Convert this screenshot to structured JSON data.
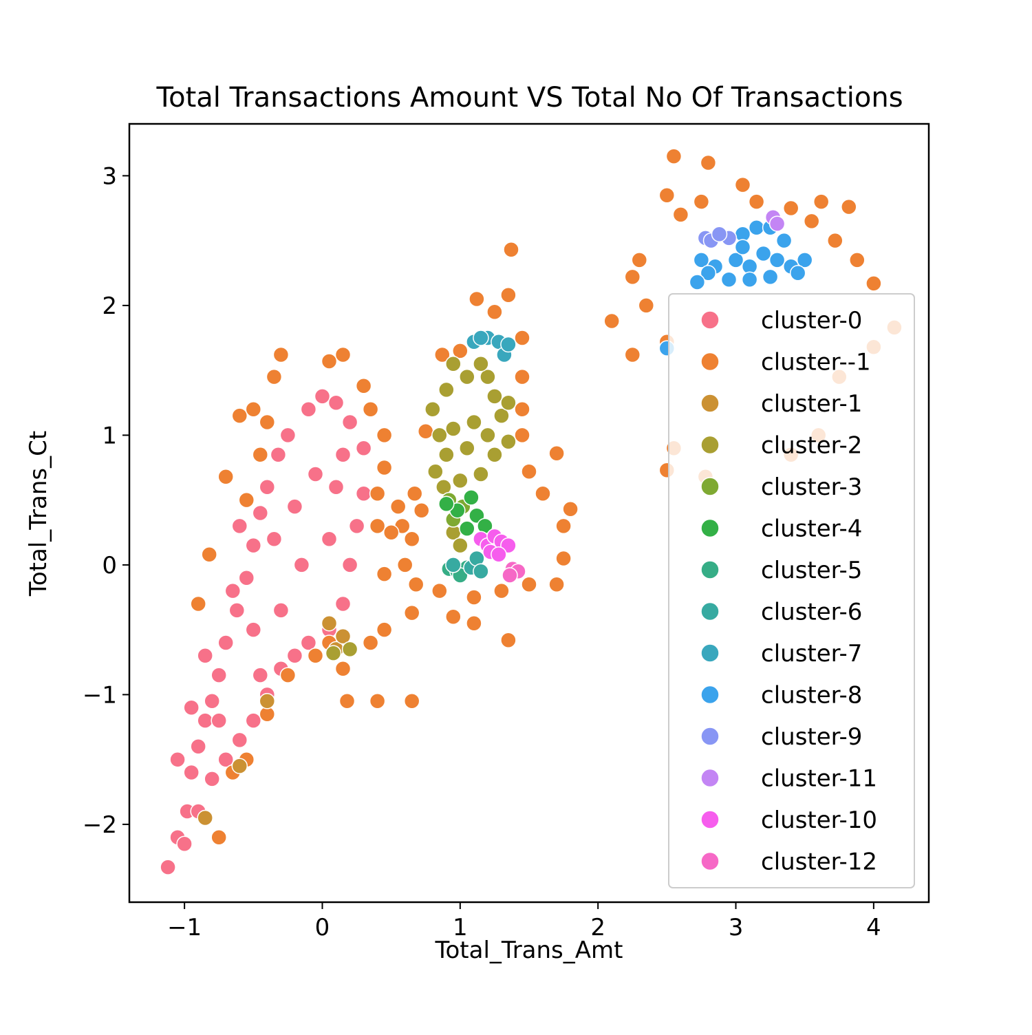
{
  "chart_data": {
    "type": "scatter",
    "title": "Total Transactions Amount VS Total No Of Transactions",
    "xlabel": "Total_Trans_Amt",
    "ylabel": "Total_Trans_Ct",
    "xlim": [
      -1.4,
      4.4
    ],
    "ylim": [
      -2.6,
      3.4
    ],
    "xticks": [
      -1,
      0,
      1,
      2,
      3,
      4
    ],
    "yticks": [
      -2,
      -1,
      0,
      1,
      2,
      3
    ],
    "xtick_labels": [
      "−1",
      "0",
      "1",
      "2",
      "3",
      "4"
    ],
    "ytick_labels": [
      "−2",
      "−1",
      "0",
      "1",
      "2",
      "3"
    ],
    "grid": false,
    "legend_position": "right",
    "marker_edge_color": "#ffffff",
    "series": [
      {
        "name": "cluster-0",
        "color": "#f77189",
        "points": [
          [
            -1.12,
            -2.33
          ],
          [
            -1.05,
            -2.1
          ],
          [
            -0.98,
            -1.9
          ],
          [
            -0.95,
            -1.6
          ],
          [
            -0.9,
            -1.4
          ],
          [
            -0.85,
            -1.2
          ],
          [
            -0.8,
            -1.05
          ],
          [
            -0.75,
            -0.85
          ],
          [
            -0.7,
            -0.6
          ],
          [
            -0.62,
            -0.35
          ],
          [
            -0.55,
            -0.1
          ],
          [
            -0.5,
            0.15
          ],
          [
            -0.45,
            0.4
          ],
          [
            -0.4,
            0.6
          ],
          [
            -0.32,
            0.85
          ],
          [
            -0.25,
            1.0
          ],
          [
            -0.1,
            1.2
          ],
          [
            0.0,
            1.3
          ],
          [
            0.1,
            1.25
          ],
          [
            0.2,
            1.1
          ],
          [
            0.3,
            0.9
          ],
          [
            0.3,
            0.55
          ],
          [
            0.25,
            0.3
          ],
          [
            0.2,
            0.0
          ],
          [
            0.15,
            -0.3
          ],
          [
            0.05,
            -0.5
          ],
          [
            -0.1,
            -0.6
          ],
          [
            -0.2,
            -0.7
          ],
          [
            -0.3,
            -0.8
          ],
          [
            -0.4,
            -1.0
          ],
          [
            -0.5,
            -1.2
          ],
          [
            -0.6,
            -1.35
          ],
          [
            -0.7,
            -1.5
          ],
          [
            -0.8,
            -1.65
          ],
          [
            -0.9,
            -1.9
          ],
          [
            -1.0,
            -2.15
          ],
          [
            -0.85,
            -0.7
          ],
          [
            -0.65,
            -0.2
          ],
          [
            -0.5,
            -0.5
          ],
          [
            -0.35,
            0.2
          ],
          [
            -0.2,
            0.45
          ],
          [
            -0.05,
            0.7
          ],
          [
            0.1,
            0.6
          ],
          [
            -0.15,
            0.0
          ],
          [
            -0.3,
            -0.35
          ],
          [
            0.05,
            0.2
          ],
          [
            0.15,
            0.85
          ],
          [
            -0.6,
            0.3
          ],
          [
            -0.45,
            -0.85
          ],
          [
            -0.75,
            -1.2
          ],
          [
            -0.95,
            -1.1
          ],
          [
            -1.05,
            -1.5
          ]
        ]
      },
      {
        "name": "cluster--1",
        "color": "#ee8132",
        "points": [
          [
            2.55,
            3.15
          ],
          [
            2.8,
            3.1
          ],
          [
            3.05,
            2.93
          ],
          [
            2.5,
            2.85
          ],
          [
            2.75,
            2.8
          ],
          [
            3.15,
            2.8
          ],
          [
            3.4,
            2.75
          ],
          [
            3.62,
            2.8
          ],
          [
            3.82,
            2.76
          ],
          [
            2.6,
            2.7
          ],
          [
            3.55,
            2.65
          ],
          [
            2.3,
            2.35
          ],
          [
            3.72,
            2.5
          ],
          [
            3.88,
            2.35
          ],
          [
            2.25,
            2.22
          ],
          [
            4.0,
            2.17
          ],
          [
            2.35,
            2.0
          ],
          [
            2.1,
            1.88
          ],
          [
            4.15,
            1.83
          ],
          [
            2.5,
            1.72
          ],
          [
            4.0,
            1.68
          ],
          [
            2.25,
            1.62
          ],
          [
            3.75,
            1.45
          ],
          [
            2.55,
            0.9
          ],
          [
            2.5,
            0.73
          ],
          [
            2.78,
            0.68
          ],
          [
            3.6,
            1.0
          ],
          [
            3.4,
            0.85
          ],
          [
            1.37,
            2.43
          ],
          [
            1.35,
            2.08
          ],
          [
            1.12,
            2.05
          ],
          [
            1.25,
            1.95
          ],
          [
            1.45,
            1.75
          ],
          [
            1.0,
            1.65
          ],
          [
            0.87,
            1.62
          ],
          [
            1.45,
            1.45
          ],
          [
            1.45,
            1.2
          ],
          [
            1.45,
            1.0
          ],
          [
            1.7,
            0.86
          ],
          [
            1.8,
            0.43
          ],
          [
            1.5,
            0.72
          ],
          [
            1.6,
            0.55
          ],
          [
            1.75,
            0.3
          ],
          [
            1.75,
            0.05
          ],
          [
            1.7,
            -0.15
          ],
          [
            1.5,
            -0.15
          ],
          [
            1.3,
            -0.2
          ],
          [
            1.1,
            -0.25
          ],
          [
            0.95,
            -0.4
          ],
          [
            1.1,
            -0.45
          ],
          [
            1.35,
            -0.58
          ],
          [
            0.85,
            -0.2
          ],
          [
            0.68,
            -0.15
          ],
          [
            0.6,
            0.0
          ],
          [
            0.65,
            0.2
          ],
          [
            0.55,
            0.45
          ],
          [
            0.67,
            0.55
          ],
          [
            0.72,
            0.42
          ],
          [
            0.58,
            0.3
          ],
          [
            0.5,
            0.25
          ],
          [
            0.4,
            0.55
          ],
          [
            0.75,
            1.03
          ],
          [
            0.45,
            -0.07
          ],
          [
            0.45,
            -0.5
          ],
          [
            0.35,
            -0.6
          ],
          [
            0.65,
            -0.37
          ],
          [
            0.4,
            -1.05
          ],
          [
            0.65,
            -1.05
          ],
          [
            0.18,
            -1.05
          ],
          [
            0.15,
            -0.8
          ],
          [
            0.05,
            -0.6
          ],
          [
            -0.05,
            -0.7
          ],
          [
            -0.25,
            -0.85
          ],
          [
            -0.4,
            -1.15
          ],
          [
            -0.55,
            -1.5
          ],
          [
            -0.65,
            -1.6
          ],
          [
            -0.75,
            -2.1
          ],
          [
            -0.85,
            -1.95
          ],
          [
            -0.9,
            -0.3
          ],
          [
            -0.82,
            0.08
          ],
          [
            -0.7,
            0.68
          ],
          [
            -0.6,
            1.15
          ],
          [
            -0.5,
            1.2
          ],
          [
            -0.35,
            1.45
          ],
          [
            -0.3,
            1.62
          ],
          [
            0.05,
            1.57
          ],
          [
            0.15,
            1.62
          ],
          [
            0.3,
            1.38
          ],
          [
            0.35,
            1.2
          ],
          [
            0.45,
            1.0
          ],
          [
            0.45,
            0.75
          ],
          [
            0.4,
            0.3
          ],
          [
            -0.4,
            1.1
          ],
          [
            -0.55,
            0.5
          ],
          [
            -0.45,
            0.85
          ]
        ]
      },
      {
        "name": "cluster-1",
        "color": "#cb9133",
        "points": [
          [
            0.1,
            -0.65
          ],
          [
            0.15,
            -0.55
          ],
          [
            0.05,
            -0.45
          ],
          [
            -0.85,
            -1.95
          ],
          [
            -0.6,
            -1.55
          ],
          [
            -0.4,
            -1.05
          ]
        ]
      },
      {
        "name": "cluster-2",
        "color": "#a99f32",
        "points": [
          [
            0.95,
            1.55
          ],
          [
            1.05,
            1.45
          ],
          [
            1.2,
            1.45
          ],
          [
            1.15,
            1.55
          ],
          [
            1.25,
            1.3
          ],
          [
            0.9,
            1.35
          ],
          [
            0.8,
            1.2
          ],
          [
            0.85,
            1.0
          ],
          [
            0.9,
            0.85
          ],
          [
            0.82,
            0.72
          ],
          [
            1.0,
            0.65
          ],
          [
            1.15,
            0.7
          ],
          [
            1.25,
            0.85
          ],
          [
            1.35,
            0.95
          ],
          [
            1.3,
            1.15
          ],
          [
            1.35,
            1.25
          ],
          [
            1.1,
            1.1
          ],
          [
            0.95,
            1.05
          ],
          [
            1.05,
            0.9
          ],
          [
            1.2,
            1.0
          ],
          [
            0.88,
            0.6
          ],
          [
            0.95,
            0.25
          ],
          [
            1.0,
            0.15
          ],
          [
            0.08,
            -0.68
          ],
          [
            0.2,
            -0.65
          ]
        ]
      },
      {
        "name": "cluster-3",
        "color": "#7fa932",
        "points": [
          [
            0.92,
            0.5
          ],
          [
            1.02,
            0.45
          ],
          [
            0.95,
            0.35
          ]
        ]
      },
      {
        "name": "cluster-4",
        "color": "#33b046",
        "points": [
          [
            1.08,
            0.52
          ],
          [
            1.12,
            0.38
          ],
          [
            0.98,
            0.42
          ],
          [
            1.05,
            0.28
          ],
          [
            0.9,
            0.47
          ],
          [
            1.18,
            0.3
          ]
        ]
      },
      {
        "name": "cluster-5",
        "color": "#36ad86",
        "points": [
          [
            0.92,
            -0.03
          ],
          [
            0.98,
            -0.05
          ],
          [
            1.05,
            -0.02
          ],
          [
            1.0,
            -0.08
          ]
        ]
      },
      {
        "name": "cluster-6",
        "color": "#37aaa1",
        "points": [
          [
            1.08,
            -0.02
          ],
          [
            1.12,
            0.05
          ],
          [
            1.15,
            -0.05
          ],
          [
            0.95,
            0.0
          ]
        ]
      },
      {
        "name": "cluster-7",
        "color": "#39a7bd",
        "points": [
          [
            1.1,
            1.72
          ],
          [
            1.2,
            1.75
          ],
          [
            1.28,
            1.72
          ],
          [
            1.32,
            1.62
          ],
          [
            1.35,
            1.7
          ],
          [
            1.15,
            1.75
          ]
        ]
      },
      {
        "name": "cluster-8",
        "color": "#3ba3ec",
        "points": [
          [
            2.75,
            2.35
          ],
          [
            2.85,
            2.3
          ],
          [
            3.0,
            2.35
          ],
          [
            3.1,
            2.3
          ],
          [
            3.2,
            2.4
          ],
          [
            3.3,
            2.35
          ],
          [
            3.4,
            2.3
          ],
          [
            3.5,
            2.35
          ],
          [
            3.05,
            2.55
          ],
          [
            3.15,
            2.6
          ],
          [
            3.25,
            2.6
          ],
          [
            2.8,
            2.25
          ],
          [
            2.95,
            2.2
          ],
          [
            3.1,
            2.2
          ],
          [
            3.25,
            2.22
          ],
          [
            3.45,
            2.25
          ],
          [
            2.72,
            2.18
          ],
          [
            3.35,
            2.5
          ],
          [
            2.5,
            1.67
          ],
          [
            3.05,
            2.45
          ]
        ]
      },
      {
        "name": "cluster-9",
        "color": "#8896f4",
        "points": [
          [
            2.78,
            2.52
          ],
          [
            2.82,
            2.5
          ],
          [
            2.95,
            2.52
          ],
          [
            2.88,
            2.55
          ]
        ]
      },
      {
        "name": "cluster-11",
        "color": "#c385f4",
        "points": [
          [
            3.27,
            2.68
          ],
          [
            3.3,
            2.63
          ]
        ]
      },
      {
        "name": "cluster-10",
        "color": "#f65ded",
        "points": [
          [
            1.15,
            0.2
          ],
          [
            1.2,
            0.15
          ],
          [
            1.25,
            0.22
          ],
          [
            1.3,
            0.18
          ],
          [
            1.35,
            0.15
          ],
          [
            1.22,
            0.1
          ],
          [
            1.28,
            0.08
          ]
        ]
      },
      {
        "name": "cluster-12",
        "color": "#f668c6",
        "points": [
          [
            1.38,
            -0.03
          ],
          [
            1.42,
            -0.05
          ],
          [
            1.36,
            -0.08
          ]
        ]
      }
    ]
  }
}
